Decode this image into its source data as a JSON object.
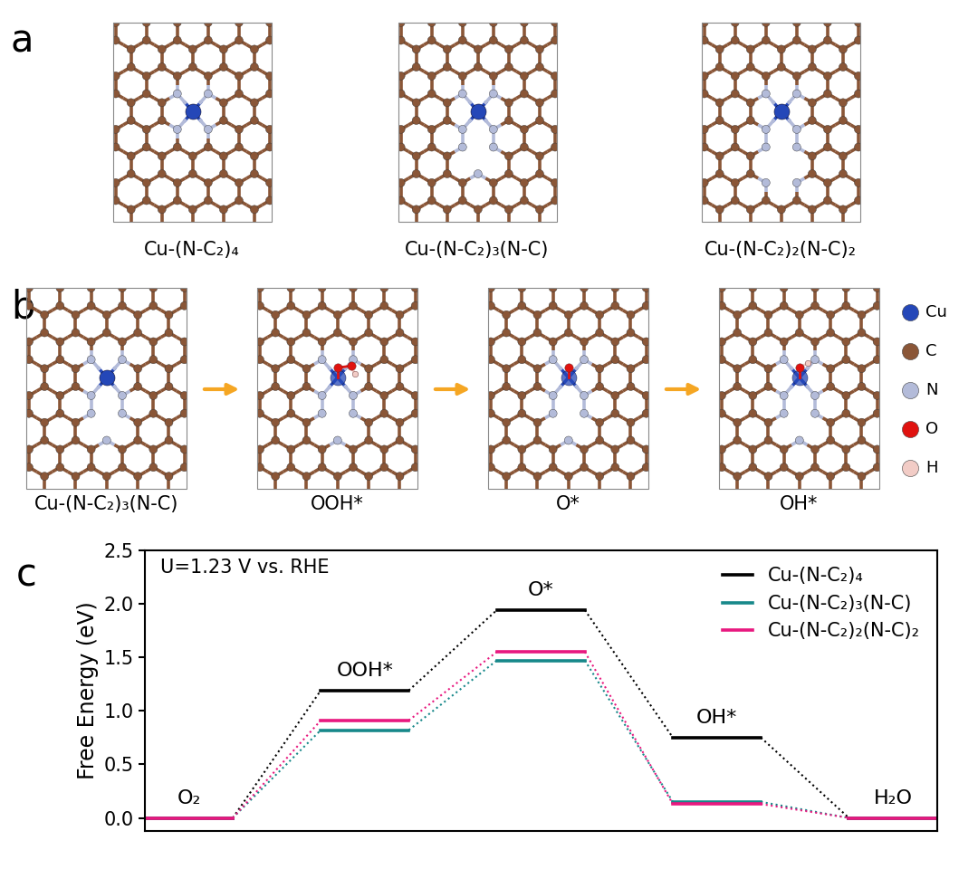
{
  "panel_labels": [
    "a",
    "b",
    "c"
  ],
  "panel_a": {
    "structures": [
      "Cu-(N-C₂)₄",
      "Cu-(N-C₂)₃(N-C)",
      "Cu-(N-C₂)₂(N-C)₂"
    ]
  },
  "panel_b": {
    "steps": [
      "Cu-(N-C₂)₃(N-C)",
      "OOH*",
      "O*",
      "OH*"
    ]
  },
  "atom_legend": [
    {
      "symbol": "Cu",
      "color": "#2447b8"
    },
    {
      "symbol": "C",
      "color": "#8a5637"
    },
    {
      "symbol": "N",
      "color": "#b3bbd9"
    },
    {
      "symbol": "O",
      "color": "#e0120f"
    },
    {
      "symbol": "H",
      "color": "#f2ccc6"
    }
  ],
  "chart_data": {
    "type": "line",
    "annotation": "U=1.23 V vs. RHE",
    "y_label": "Free Energy (eV)",
    "categories": [
      "O₂",
      "OOH*",
      "O*",
      "OH*",
      "H₂O"
    ],
    "series": [
      {
        "name": "Cu-(N-C₂)₄",
        "color": "#000000",
        "values": [
          0,
          1.19,
          1.94,
          0.75,
          0
        ]
      },
      {
        "name": "Cu-(N-C₂)₃(N-C)",
        "color": "#17888a",
        "values": [
          0,
          0.82,
          1.47,
          0.15,
          0
        ]
      },
      {
        "name": "Cu-(N-C₂)₂(N-C)₂",
        "color": "#e8187f",
        "values": [
          0,
          0.91,
          1.55,
          0.13,
          0
        ]
      }
    ],
    "ylim": [
      -0.12,
      2.5
    ],
    "yticks": [
      {
        "value": 0,
        "label": "0.0"
      },
      0.5,
      {
        "value": 1,
        "label": "1.0"
      },
      1.5,
      {
        "value": 2,
        "label": "2.0"
      },
      2.5
    ],
    "legend": "upper right",
    "tick_labels": "y",
    "line_style": "solid"
  }
}
